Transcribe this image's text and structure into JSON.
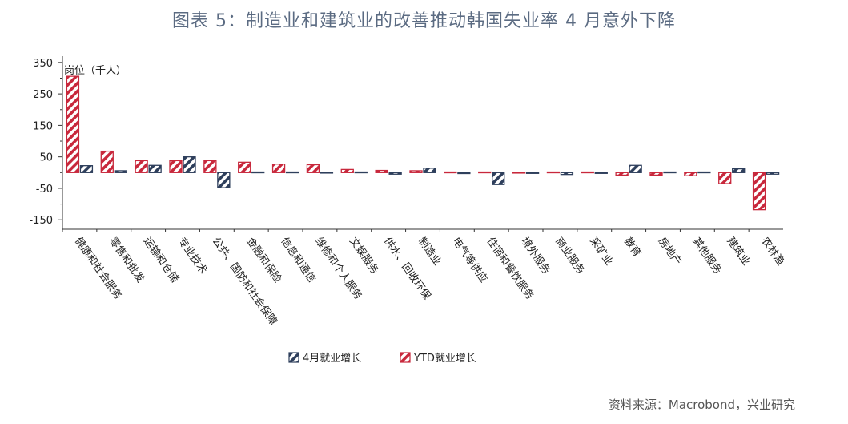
{
  "title": "图表 5：制造业和建筑业的改善推动韩国失业率 4 月意外下降",
  "source": "资料来源：Macrobond，兴业研究",
  "colors": {
    "april": "#2e3f5c",
    "ytd": "#c8283c"
  },
  "chart_data": {
    "type": "bar",
    "ylabel": "岗位（千人）",
    "ylim": [
      -180,
      370
    ],
    "yticks": [
      350,
      250,
      150,
      50,
      -50,
      -150
    ],
    "categories": [
      "健康和社会服务",
      "零售和批发",
      "运输和仓储",
      "专业技术",
      "公共、国防和社会保障",
      "金融和保险",
      "信息和通信",
      "维修和个人服务",
      "文娱服务",
      "供水、回收环保",
      "制造业",
      "电气等供应",
      "住宿和餐饮服务",
      "境外服务",
      "商业服务",
      "采矿业",
      "教育",
      "房地产",
      "其他服务",
      "建筑业",
      "农林渔"
    ],
    "series": [
      {
        "name": "4月就业增长",
        "values": [
          22,
          6,
          23,
          50,
          -48,
          2,
          2,
          1,
          2,
          -5,
          14,
          -3,
          -38,
          0,
          -6,
          0,
          23,
          2,
          2,
          12,
          -5
        ]
      },
      {
        "name": "YTD就业增长",
        "values": [
          306,
          68,
          38,
          38,
          38,
          33,
          27,
          25,
          10,
          7,
          6,
          2,
          2,
          1,
          2,
          2,
          -8,
          -8,
          -10,
          -35,
          -118
        ]
      }
    ],
    "legend_position": "bottom"
  }
}
